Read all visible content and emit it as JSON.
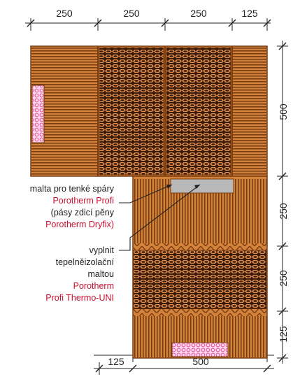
{
  "dimensions": {
    "top": [
      "250",
      "250",
      "250",
      "125"
    ],
    "right": [
      "500",
      "250",
      "250",
      "125"
    ],
    "bottom": [
      "125",
      "500"
    ]
  },
  "callouts": {
    "joint": {
      "lines": [
        {
          "text": "malta pro tenké spáry",
          "color": "#222222"
        },
        {
          "text": "Porotherm Profi",
          "color": "#c8102e"
        },
        {
          "text": "(pásy zdicí pěny",
          "color": "#222222"
        },
        {
          "text": "Porotherm Dryfix)",
          "color": "#c8102e"
        }
      ]
    },
    "fill": {
      "lines": [
        {
          "text": "vyplnit",
          "color": "#222222"
        },
        {
          "text": "tepelněizolační",
          "color": "#222222"
        },
        {
          "text": "maltou",
          "color": "#222222"
        },
        {
          "text": "Porotherm",
          "color": "#c8102e"
        },
        {
          "text": "Profi Thermo-UNI",
          "color": "#c8102e"
        }
      ]
    }
  },
  "colors": {
    "brick": "#d3823b",
    "brick_dark": "#7a3d12",
    "insulation": "#ffd6ec",
    "insulation_dot": "#e0408f",
    "mortar": "#b9b9b9",
    "accent": "#c8102e"
  }
}
